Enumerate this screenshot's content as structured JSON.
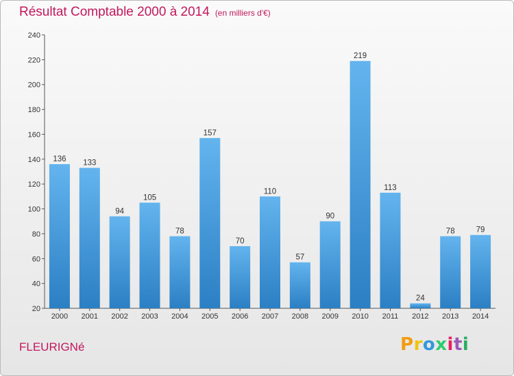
{
  "header": {
    "title": "Résultat Comptable 2000 à 2014",
    "subtitle": "(en milliers d'€)"
  },
  "footer": {
    "commune": "FLEURIGNé",
    "logo": {
      "letters": [
        "P",
        "r",
        "o",
        "x",
        "i",
        "t",
        "i"
      ],
      "colors": [
        "#f39c12",
        "#f1c40f",
        "#3498db",
        "#2ecc71",
        "#e91e63",
        "#9b59b6",
        "#27ae60"
      ]
    }
  },
  "chart_data": {
    "type": "bar",
    "title": "Résultat Comptable 2000 à 2014",
    "subtitle": "(en milliers d'€)",
    "xlabel": "",
    "ylabel": "",
    "categories": [
      "2000",
      "2001",
      "2002",
      "2003",
      "2004",
      "2005",
      "2006",
      "2007",
      "2008",
      "2009",
      "2010",
      "2011",
      "2012",
      "2013",
      "2014"
    ],
    "values": [
      136,
      133,
      94,
      105,
      78,
      157,
      70,
      110,
      57,
      90,
      219,
      113,
      24,
      78,
      79
    ],
    "ylim": [
      20,
      240
    ],
    "yticks": [
      20,
      40,
      60,
      80,
      100,
      120,
      140,
      160,
      180,
      200,
      220,
      240
    ],
    "grid": false,
    "colors": {
      "bar_top": "#63b4ee",
      "bar_bottom": "#2b7fc3",
      "axis": "#555555",
      "title": "#c2185b"
    }
  }
}
